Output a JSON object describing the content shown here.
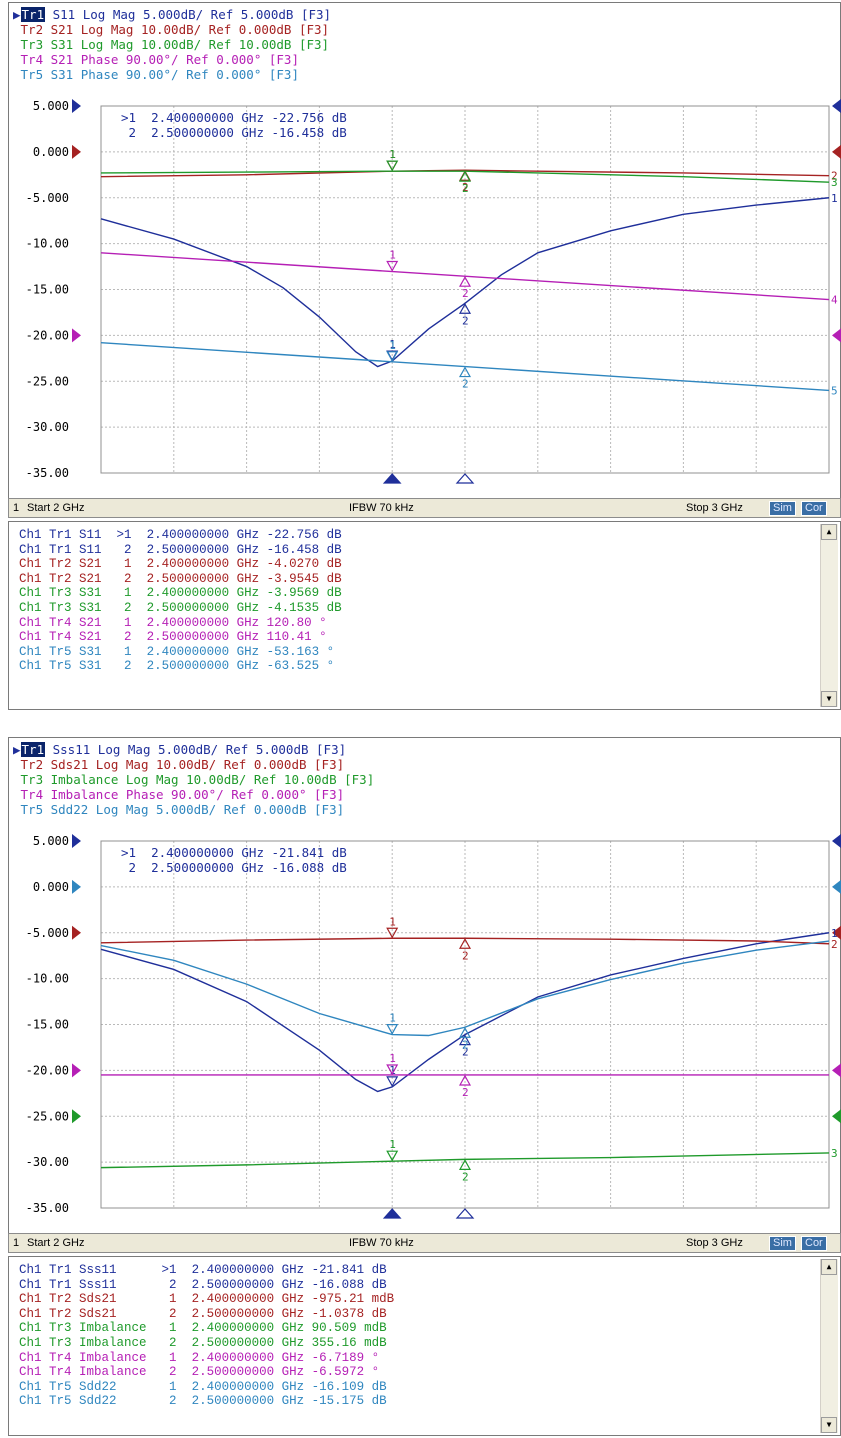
{
  "colors": {
    "tr1": "#1f2f9a",
    "tr2": "#a52222",
    "tr3": "#1f9a2b",
    "tr4": "#b51fb5",
    "tr5": "#2f86bf",
    "grid": "#b9b9b9"
  },
  "panels": [
    {
      "traces": [
        {
          "id": "Tr1",
          "label": "S11 Log Mag 5.000dB/ Ref 5.000dB [F3]",
          "selected": true
        },
        {
          "id": "Tr2",
          "label": "S21 Log Mag 10.00dB/ Ref 0.000dB [F3]",
          "selected": false
        },
        {
          "id": "Tr3",
          "label": "S31 Log Mag 10.00dB/ Ref 10.00dB [F3]",
          "selected": false
        },
        {
          "id": "Tr4",
          "label": "S21 Phase 90.00°/ Ref 0.000° [F3]",
          "selected": false
        },
        {
          "id": "Tr5",
          "label": "S31 Phase 90.00°/ Ref 0.000° [F3]",
          "selected": false
        }
      ],
      "marker_readout": [
        ">1  2.400000000 GHz -22.756 dB",
        " 2  2.500000000 GHz -16.458 dB"
      ],
      "status": {
        "start": "Start 2 GHz",
        "ifbw": "IFBW 70 kHz",
        "stop": "Stop 3 GHz",
        "sim": "Sim",
        "cor": "Cor",
        "channel": "1"
      },
      "marker_table": [
        {
          "ch": "Ch1",
          "tr": "Tr1",
          "param": "S11",
          "mk": ">1",
          "freq": "2.400000000 GHz",
          "val": "-22.756 dB",
          "trace": "tr1"
        },
        {
          "ch": "Ch1",
          "tr": "Tr1",
          "param": "S11",
          "mk": "2",
          "freq": "2.500000000 GHz",
          "val": "-16.458 dB",
          "trace": "tr1"
        },
        {
          "ch": "Ch1",
          "tr": "Tr2",
          "param": "S21",
          "mk": "1",
          "freq": "2.400000000 GHz",
          "val": "-4.0270 dB",
          "trace": "tr2"
        },
        {
          "ch": "Ch1",
          "tr": "Tr2",
          "param": "S21",
          "mk": "2",
          "freq": "2.500000000 GHz",
          "val": "-3.9545 dB",
          "trace": "tr2"
        },
        {
          "ch": "Ch1",
          "tr": "Tr3",
          "param": "S31",
          "mk": "1",
          "freq": "2.400000000 GHz",
          "val": "-3.9569 dB",
          "trace": "tr3"
        },
        {
          "ch": "Ch1",
          "tr": "Tr3",
          "param": "S31",
          "mk": "2",
          "freq": "2.500000000 GHz",
          "val": "-4.1535 dB",
          "trace": "tr3"
        },
        {
          "ch": "Ch1",
          "tr": "Tr4",
          "param": "S21",
          "mk": "1",
          "freq": "2.400000000 GHz",
          "val": "120.80 °",
          "trace": "tr4"
        },
        {
          "ch": "Ch1",
          "tr": "Tr4",
          "param": "S21",
          "mk": "2",
          "freq": "2.500000000 GHz",
          "val": "110.41 °",
          "trace": "tr4"
        },
        {
          "ch": "Ch1",
          "tr": "Tr5",
          "param": "S31",
          "mk": "1",
          "freq": "2.400000000 GHz",
          "val": "-53.163 °",
          "trace": "tr5"
        },
        {
          "ch": "Ch1",
          "tr": "Tr5",
          "param": "S31",
          "mk": "2",
          "freq": "2.500000000 GHz",
          "val": "-63.525 °",
          "trace": "tr5"
        }
      ]
    },
    {
      "traces": [
        {
          "id": "Tr1",
          "label": "Sss11 Log Mag 5.000dB/ Ref 5.000dB [F3]",
          "selected": true
        },
        {
          "id": "Tr2",
          "label": "Sds21 Log Mag 10.00dB/ Ref 0.000dB [F3]",
          "selected": false
        },
        {
          "id": "Tr3",
          "label": "Imbalance Log Mag 10.00dB/ Ref 10.00dB [F3]",
          "selected": false
        },
        {
          "id": "Tr4",
          "label": "Imbalance Phase 90.00°/ Ref 0.000° [F3]",
          "selected": false
        },
        {
          "id": "Tr5",
          "label": "Sdd22 Log Mag 5.000dB/ Ref 0.000dB [F3]",
          "selected": false
        }
      ],
      "marker_readout": [
        ">1  2.400000000 GHz -21.841 dB",
        " 2  2.500000000 GHz -16.088 dB"
      ],
      "status": {
        "start": "Start 2 GHz",
        "ifbw": "IFBW 70 kHz",
        "stop": "Stop 3 GHz",
        "sim": "Sim",
        "cor": "Cor",
        "channel": "1"
      },
      "marker_table": [
        {
          "ch": "Ch1",
          "tr": "Tr1",
          "param": "Sss11",
          "mk": ">1",
          "freq": "2.400000000 GHz",
          "val": "-21.841 dB",
          "trace": "tr1"
        },
        {
          "ch": "Ch1",
          "tr": "Tr1",
          "param": "Sss11",
          "mk": "2",
          "freq": "2.500000000 GHz",
          "val": "-16.088 dB",
          "trace": "tr1"
        },
        {
          "ch": "Ch1",
          "tr": "Tr2",
          "param": "Sds21",
          "mk": "1",
          "freq": "2.400000000 GHz",
          "val": "-975.21 mdB",
          "trace": "tr2"
        },
        {
          "ch": "Ch1",
          "tr": "Tr2",
          "param": "Sds21",
          "mk": "2",
          "freq": "2.500000000 GHz",
          "val": "-1.0378 dB",
          "trace": "tr2"
        },
        {
          "ch": "Ch1",
          "tr": "Tr3",
          "param": "Imbalance",
          "mk": "1",
          "freq": "2.400000000 GHz",
          "val": "90.509 mdB",
          "trace": "tr3"
        },
        {
          "ch": "Ch1",
          "tr": "Tr3",
          "param": "Imbalance",
          "mk": "2",
          "freq": "2.500000000 GHz",
          "val": "355.16 mdB",
          "trace": "tr3"
        },
        {
          "ch": "Ch1",
          "tr": "Tr4",
          "param": "Imbalance",
          "mk": "1",
          "freq": "2.400000000 GHz",
          "val": "-6.7189 °",
          "trace": "tr4"
        },
        {
          "ch": "Ch1",
          "tr": "Tr4",
          "param": "Imbalance",
          "mk": "2",
          "freq": "2.500000000 GHz",
          "val": "-6.5972 °",
          "trace": "tr4"
        },
        {
          "ch": "Ch1",
          "tr": "Tr5",
          "param": "Sdd22",
          "mk": "1",
          "freq": "2.400000000 GHz",
          "val": "-16.109 dB",
          "trace": "tr5"
        },
        {
          "ch": "Ch1",
          "tr": "Tr5",
          "param": "Sdd22",
          "mk": "2",
          "freq": "2.500000000 GHz",
          "val": "-15.175 dB",
          "trace": "tr5"
        }
      ]
    }
  ],
  "chart_data": [
    {
      "type": "line",
      "x_range": [
        2.0,
        3.0
      ],
      "y_ticks": [
        "5.000",
        "0.000",
        "-5.000",
        "-10.00",
        "-15.00",
        "-20.00",
        "-25.00",
        "-30.00",
        "-35.00"
      ],
      "ylim": [
        -35,
        5
      ],
      "grid": true,
      "markers_x": [
        2.4,
        2.5
      ],
      "series": [
        {
          "trace": "tr1",
          "end_label": "1",
          "x": [
            2.0,
            2.1,
            2.2,
            2.25,
            2.3,
            2.35,
            2.38,
            2.4,
            2.45,
            2.5,
            2.55,
            2.6,
            2.7,
            2.8,
            2.9,
            3.0
          ],
          "y": [
            -7.3,
            -9.5,
            -12.5,
            -14.8,
            -18.0,
            -21.8,
            -23.4,
            -22.8,
            -19.3,
            -16.5,
            -13.4,
            -11.0,
            -8.6,
            -6.8,
            -5.8,
            -5.0
          ]
        },
        {
          "trace": "tr2",
          "end_label": "2",
          "x": [
            2.0,
            2.2,
            2.4,
            2.5,
            2.6,
            2.8,
            3.0
          ],
          "y": [
            -2.7,
            -2.5,
            -2.1,
            -2.0,
            -2.1,
            -2.3,
            -2.6
          ]
        },
        {
          "trace": "tr3",
          "end_label": "3",
          "x": [
            2.0,
            2.2,
            2.4,
            2.5,
            2.6,
            2.8,
            3.0
          ],
          "y": [
            -2.3,
            -2.2,
            -2.1,
            -2.1,
            -2.3,
            -2.7,
            -3.3
          ]
        },
        {
          "trace": "tr4",
          "end_label": "4",
          "x": [
            2.0,
            3.0
          ],
          "y": [
            -11.0,
            -16.1
          ]
        },
        {
          "trace": "tr5",
          "end_label": "5",
          "x": [
            2.0,
            3.0
          ],
          "y": [
            -20.8,
            -26.0
          ]
        }
      ]
    },
    {
      "type": "line",
      "x_range": [
        2.0,
        3.0
      ],
      "y_ticks": [
        "5.000",
        "0.000",
        "-5.000",
        "-10.00",
        "-15.00",
        "-20.00",
        "-25.00",
        "-30.00",
        "-35.00"
      ],
      "ylim": [
        -35,
        5
      ],
      "grid": true,
      "markers_x": [
        2.4,
        2.5
      ],
      "series": [
        {
          "trace": "tr1",
          "end_label": "1",
          "x": [
            2.0,
            2.1,
            2.2,
            2.3,
            2.35,
            2.38,
            2.4,
            2.45,
            2.5,
            2.6,
            2.7,
            2.8,
            2.9,
            3.0
          ],
          "y": [
            -6.8,
            -9.0,
            -12.5,
            -17.8,
            -21.0,
            -22.3,
            -21.8,
            -18.8,
            -16.1,
            -12.0,
            -9.6,
            -7.8,
            -6.2,
            -5.0
          ]
        },
        {
          "trace": "tr2",
          "end_label": "2",
          "x": [
            2.0,
            2.2,
            2.4,
            2.5,
            2.7,
            2.9,
            3.0
          ],
          "y": [
            -6.1,
            -5.8,
            -5.6,
            -5.6,
            -5.7,
            -5.9,
            -6.2
          ]
        },
        {
          "trace": "tr3",
          "end_label": "3",
          "x": [
            2.0,
            2.2,
            2.4,
            2.5,
            2.7,
            3.0
          ],
          "y": [
            -30.6,
            -30.3,
            -29.9,
            -29.7,
            -29.5,
            -29.0
          ]
        },
        {
          "trace": "tr4",
          "end_label": "",
          "x": [
            2.0,
            3.0
          ],
          "y": [
            -20.5,
            -20.5
          ]
        },
        {
          "trace": "tr5",
          "end_label": "",
          "x": [
            2.0,
            2.1,
            2.2,
            2.3,
            2.4,
            2.45,
            2.5,
            2.6,
            2.7,
            2.8,
            2.9,
            3.0
          ],
          "y": [
            -6.4,
            -8.0,
            -10.6,
            -13.8,
            -16.1,
            -16.2,
            -15.3,
            -12.2,
            -10.1,
            -8.3,
            -6.9,
            -5.9
          ]
        }
      ]
    }
  ]
}
